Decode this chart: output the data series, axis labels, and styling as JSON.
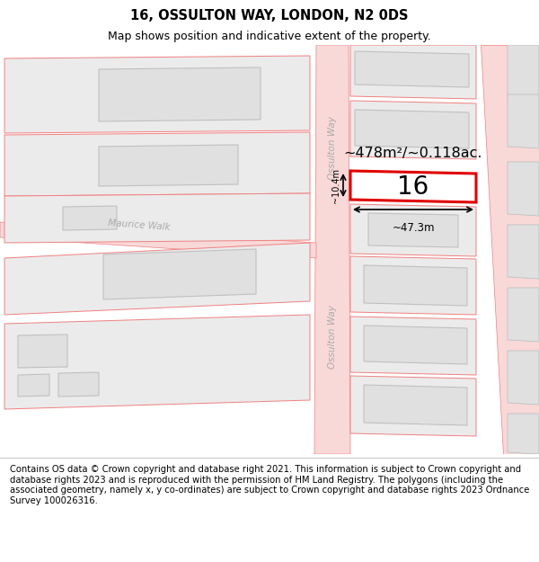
{
  "title": "16, OSSULTON WAY, LONDON, N2 0DS",
  "subtitle": "Map shows position and indicative extent of the property.",
  "footer": "Contains OS data © Crown copyright and database right 2021. This information is subject to Crown copyright and database rights 2023 and is reproduced with the permission of HM Land Registry. The polygons (including the associated geometry, namely x, y co-ordinates) are subject to Crown copyright and database rights 2023 Ordnance Survey 100026316.",
  "area_label": "~478m²/~0.118ac.",
  "number_label": "16",
  "width_label": "~47.3m",
  "height_label": "~10.4m",
  "road_label_v1": "Ossulton Way",
  "road_label_v2": "Ossulton Way",
  "cross_road_label": "Maurice Walk",
  "background_color": "#ffffff",
  "road_fill": "#f9d8d8",
  "road_edge": "#f08080",
  "plot_fill": "#ebebeb",
  "plot_edge": "#c8c8c8",
  "bldg_fill": "#e0e0e0",
  "bldg_edge": "#c0c0c0",
  "highlight_fill": "#ffffff",
  "highlight_edge": "#e00000",
  "title_fontsize": 10.5,
  "subtitle_fontsize": 9,
  "footer_fontsize": 7.2
}
